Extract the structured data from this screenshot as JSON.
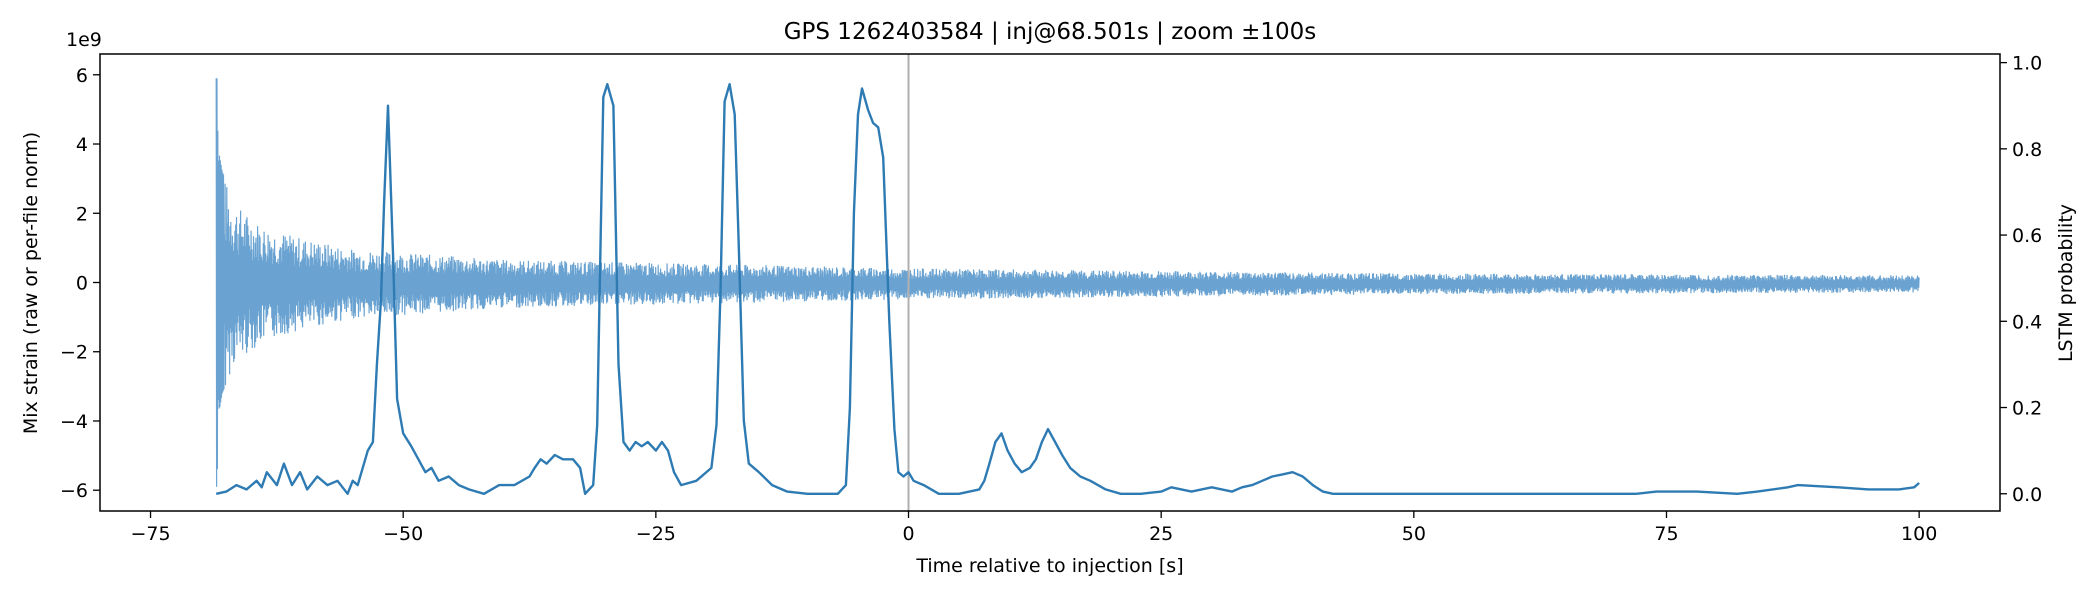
{
  "chart_data": {
    "type": "line",
    "title": "GPS 1262403584 | inj@68.501s | zoom ±100s",
    "xlabel": "Time relative to injection [s]",
    "ylabel_left": "Mix strain (raw or per-file norm)",
    "ylabel_right": "LSTM probability",
    "left_offset_label": "1e9",
    "xlim": [
      -80,
      108
    ],
    "ylim_left": [
      -6.6,
      6.6
    ],
    "ylim_right": [
      -0.04,
      1.02
    ],
    "xticks": [
      -75,
      -50,
      -25,
      0,
      25,
      50,
      75,
      100
    ],
    "xtick_labels": [
      "−75",
      "−50",
      "−25",
      "0",
      "25",
      "50",
      "75",
      "100"
    ],
    "yticks_left": [
      -6,
      -4,
      -2,
      0,
      2,
      4,
      6
    ],
    "ytick_labels_left": [
      "−6",
      "−4",
      "−2",
      "0",
      "2",
      "4",
      "6"
    ],
    "yticks_right": [
      0.0,
      0.2,
      0.4,
      0.6,
      0.8,
      1.0
    ],
    "ytick_labels_right": [
      "0.0",
      "0.2",
      "0.4",
      "0.6",
      "0.8",
      "1.0"
    ],
    "injection_marker_x": 0,
    "colors": {
      "strain": "#6aa3d1",
      "probability": "#2e7bb4",
      "marker": "#b0b0b0"
    },
    "series": [
      {
        "axis": "left",
        "x_range": [
          -68.5,
          100
        ],
        "peaks_e9": [
          [
            -68.4,
            5.9
          ],
          [
            -68.3,
            3.4
          ],
          [
            -68.2,
            -3.7
          ],
          [
            -67.9,
            3.2
          ],
          [
            -67.6,
            -3.0
          ],
          [
            -66.9,
            2.4
          ],
          [
            -65.8,
            -2.1
          ],
          [
            -64.0,
            1.7
          ],
          [
            -61.0,
            1.4
          ],
          [
            -55.0,
            1.0
          ],
          [
            -40.0,
            0.7
          ],
          [
            0,
            0.45
          ],
          [
            50,
            0.3
          ],
          [
            100,
            0.25
          ]
        ]
      },
      {
        "axis": "right",
        "points": [
          [
            -68.5,
            0.0
          ],
          [
            -67.5,
            0.005
          ],
          [
            -66.5,
            0.02
          ],
          [
            -65.5,
            0.01
          ],
          [
            -64.5,
            0.03
          ],
          [
            -64.0,
            0.015
          ],
          [
            -63.5,
            0.05
          ],
          [
            -62.5,
            0.02
          ],
          [
            -61.8,
            0.07
          ],
          [
            -61.0,
            0.02
          ],
          [
            -60.2,
            0.05
          ],
          [
            -59.5,
            0.01
          ],
          [
            -58.5,
            0.04
          ],
          [
            -57.5,
            0.02
          ],
          [
            -56.5,
            0.03
          ],
          [
            -55.5,
            0.0
          ],
          [
            -55.0,
            0.03
          ],
          [
            -54.5,
            0.02
          ],
          [
            -53.5,
            0.1
          ],
          [
            -53.0,
            0.12
          ],
          [
            -52.6,
            0.3
          ],
          [
            -52.2,
            0.45
          ],
          [
            -51.9,
            0.67
          ],
          [
            -51.5,
            0.9
          ],
          [
            -51.0,
            0.55
          ],
          [
            -50.6,
            0.22
          ],
          [
            -50.0,
            0.14
          ],
          [
            -49.2,
            0.11
          ],
          [
            -48.5,
            0.08
          ],
          [
            -47.8,
            0.05
          ],
          [
            -47.2,
            0.06
          ],
          [
            -46.5,
            0.03
          ],
          [
            -45.5,
            0.04
          ],
          [
            -44.5,
            0.02
          ],
          [
            -43.5,
            0.01
          ],
          [
            -42.0,
            0.0
          ],
          [
            -40.5,
            0.02
          ],
          [
            -39.0,
            0.02
          ],
          [
            -37.5,
            0.04
          ],
          [
            -37.0,
            0.06
          ],
          [
            -36.4,
            0.08
          ],
          [
            -35.8,
            0.07
          ],
          [
            -35.0,
            0.09
          ],
          [
            -34.2,
            0.08
          ],
          [
            -33.2,
            0.08
          ],
          [
            -32.5,
            0.06
          ],
          [
            -32.0,
            0.0
          ],
          [
            -31.2,
            0.02
          ],
          [
            -30.8,
            0.16
          ],
          [
            -30.5,
            0.55
          ],
          [
            -30.2,
            0.92
          ],
          [
            -29.8,
            0.95
          ],
          [
            -29.2,
            0.9
          ],
          [
            -28.7,
            0.3
          ],
          [
            -28.2,
            0.12
          ],
          [
            -27.6,
            0.1
          ],
          [
            -27.0,
            0.12
          ],
          [
            -26.4,
            0.11
          ],
          [
            -25.8,
            0.12
          ],
          [
            -25.0,
            0.1
          ],
          [
            -24.4,
            0.12
          ],
          [
            -23.8,
            0.1
          ],
          [
            -23.2,
            0.05
          ],
          [
            -22.5,
            0.02
          ],
          [
            -21.0,
            0.03
          ],
          [
            -19.5,
            0.06
          ],
          [
            -19.0,
            0.16
          ],
          [
            -18.6,
            0.47
          ],
          [
            -18.2,
            0.91
          ],
          [
            -17.7,
            0.95
          ],
          [
            -17.2,
            0.88
          ],
          [
            -16.8,
            0.58
          ],
          [
            -16.3,
            0.17
          ],
          [
            -15.8,
            0.07
          ],
          [
            -14.8,
            0.05
          ],
          [
            -13.5,
            0.02
          ],
          [
            -12.0,
            0.005
          ],
          [
            -10.0,
            0.0
          ],
          [
            -7.0,
            0.0
          ],
          [
            -6.2,
            0.02
          ],
          [
            -5.8,
            0.2
          ],
          [
            -5.4,
            0.65
          ],
          [
            -5.0,
            0.88
          ],
          [
            -4.6,
            0.94
          ],
          [
            -4.0,
            0.89
          ],
          [
            -3.5,
            0.86
          ],
          [
            -3.0,
            0.85
          ],
          [
            -2.5,
            0.78
          ],
          [
            -1.9,
            0.4
          ],
          [
            -1.4,
            0.15
          ],
          [
            -1.0,
            0.05
          ],
          [
            -0.5,
            0.04
          ],
          [
            0.0,
            0.05
          ],
          [
            0.5,
            0.03
          ],
          [
            1.5,
            0.02
          ],
          [
            3.0,
            0.0
          ],
          [
            5.0,
            0.0
          ],
          [
            7.0,
            0.01
          ],
          [
            7.5,
            0.03
          ],
          [
            8.0,
            0.07
          ],
          [
            8.6,
            0.12
          ],
          [
            9.2,
            0.14
          ],
          [
            9.8,
            0.1
          ],
          [
            10.5,
            0.07
          ],
          [
            11.2,
            0.05
          ],
          [
            12.0,
            0.06
          ],
          [
            12.6,
            0.08
          ],
          [
            13.2,
            0.12
          ],
          [
            13.8,
            0.15
          ],
          [
            14.5,
            0.12
          ],
          [
            15.2,
            0.09
          ],
          [
            16.0,
            0.06
          ],
          [
            17.0,
            0.04
          ],
          [
            18.0,
            0.03
          ],
          [
            19.5,
            0.01
          ],
          [
            21.0,
            0.0
          ],
          [
            23.0,
            0.0
          ],
          [
            25.0,
            0.005
          ],
          [
            26.0,
            0.015
          ],
          [
            27.0,
            0.01
          ],
          [
            28.0,
            0.005
          ],
          [
            29.0,
            0.01
          ],
          [
            30.0,
            0.015
          ],
          [
            31.0,
            0.01
          ],
          [
            32.0,
            0.005
          ],
          [
            33.0,
            0.015
          ],
          [
            34.0,
            0.02
          ],
          [
            35.0,
            0.03
          ],
          [
            36.0,
            0.04
          ],
          [
            37.0,
            0.045
          ],
          [
            38.0,
            0.05
          ],
          [
            39.0,
            0.04
          ],
          [
            40.0,
            0.02
          ],
          [
            41.0,
            0.005
          ],
          [
            42.0,
            0.0
          ],
          [
            60.0,
            0.0
          ],
          [
            72.0,
            0.0
          ],
          [
            74.0,
            0.005
          ],
          [
            78.0,
            0.005
          ],
          [
            82.0,
            0.0
          ],
          [
            84.0,
            0.005
          ],
          [
            87.0,
            0.015
          ],
          [
            88.0,
            0.02
          ],
          [
            92.0,
            0.015
          ],
          [
            95.0,
            0.01
          ],
          [
            98.0,
            0.01
          ],
          [
            99.5,
            0.015
          ],
          [
            100.0,
            0.025
          ]
        ]
      }
    ]
  }
}
